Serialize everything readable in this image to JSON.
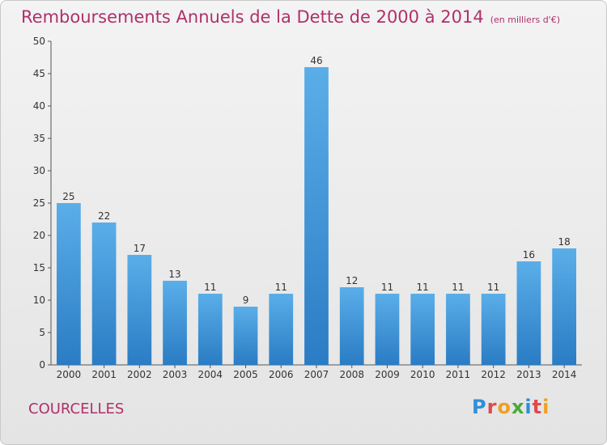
{
  "chart_data": {
    "type": "bar",
    "title": "Remboursements Annuels de la Dette de 2000 à 2014",
    "subtitle": "(en milliers d'€)",
    "categories": [
      "2000",
      "2001",
      "2002",
      "2003",
      "2004",
      "2005",
      "2006",
      "2007",
      "2008",
      "2009",
      "2010",
      "2011",
      "2012",
      "2013",
      "2014"
    ],
    "values": [
      25,
      22,
      17,
      13,
      11,
      9,
      11,
      46,
      12,
      11,
      11,
      11,
      11,
      16,
      18
    ],
    "ylim": [
      0,
      50
    ],
    "yticks": [
      0,
      5,
      10,
      15,
      20,
      25,
      30,
      35,
      40,
      45,
      50
    ],
    "grid": false,
    "bar_color": "#3f92d8"
  },
  "footer": {
    "town": "COURCELLES",
    "logo_letters": [
      "P",
      "r",
      "o",
      "x",
      "i",
      "t",
      "i"
    ]
  }
}
